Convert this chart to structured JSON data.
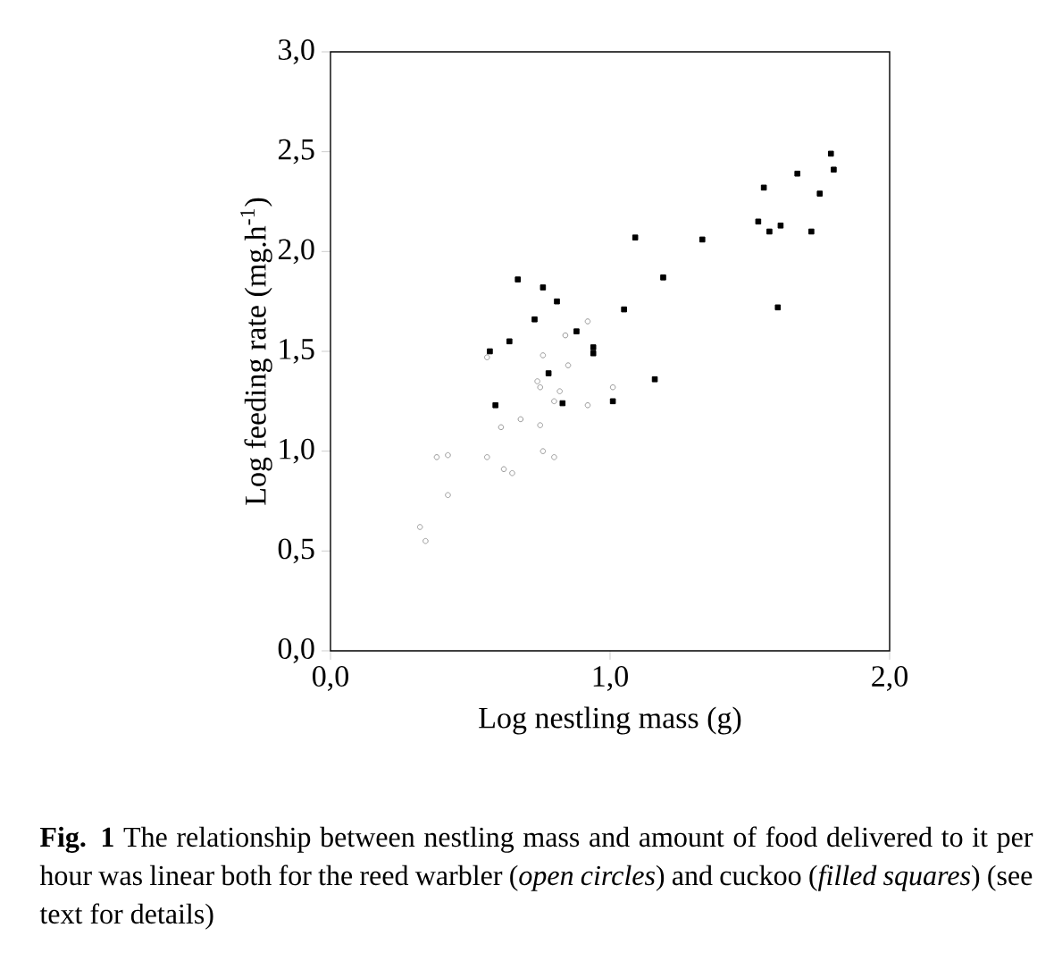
{
  "chart_data": {
    "type": "scatter",
    "xlabel": "Log nestling mass (g)",
    "ylabel": "Log feeding rate (mg.h$^{-1}$)",
    "xlim": [
      0,
      2
    ],
    "ylim": [
      0,
      3
    ],
    "xticks": [
      {
        "value": 0,
        "label": "0,0"
      },
      {
        "value": 1,
        "label": "1,0"
      },
      {
        "value": 2,
        "label": "2,0"
      }
    ],
    "yticks": [
      {
        "value": 0,
        "label": "0,0"
      },
      {
        "value": 0.5,
        "label": "0,5"
      },
      {
        "value": 1,
        "label": "1,0"
      },
      {
        "value": 1.5,
        "label": "1,5"
      },
      {
        "value": 2,
        "label": "2,0"
      },
      {
        "value": 2.5,
        "label": "2,5"
      },
      {
        "value": 3,
        "label": "3,0"
      }
    ],
    "grid": false,
    "series": [
      {
        "color": "#999999",
        "marker": "circle",
        "x": [
          0.92,
          0.84,
          0.56,
          0.76,
          0.85,
          0.74,
          0.75,
          0.82,
          0.8,
          0.92,
          1.01,
          0.68,
          0.61,
          0.75,
          0.38,
          0.42,
          0.56,
          0.76,
          0.8,
          0.62,
          0.65,
          0.42,
          0.32,
          0.34
        ],
        "values": [
          1.65,
          1.58,
          1.47,
          1.48,
          1.43,
          1.35,
          1.32,
          1.3,
          1.25,
          1.23,
          1.32,
          1.16,
          1.12,
          1.13,
          0.97,
          0.98,
          0.97,
          1.0,
          0.97,
          0.91,
          0.89,
          0.78,
          0.62,
          0.55
        ]
      },
      {
        "color": "#000000",
        "marker": "square",
        "x": [
          1.79,
          1.8,
          1.67,
          1.55,
          1.75,
          1.53,
          1.57,
          1.61,
          1.72,
          1.6,
          1.33,
          1.09,
          1.19,
          1.05,
          1.16,
          1.01,
          0.67,
          0.76,
          0.81,
          0.73,
          0.88,
          0.94,
          0.94,
          0.64,
          0.57,
          0.78,
          0.83,
          0.59
        ],
        "values": [
          2.49,
          2.41,
          2.39,
          2.32,
          2.29,
          2.15,
          2.1,
          2.13,
          2.1,
          1.72,
          2.06,
          2.07,
          1.87,
          1.71,
          1.36,
          1.25,
          1.86,
          1.82,
          1.75,
          1.66,
          1.6,
          1.52,
          1.49,
          1.55,
          1.5,
          1.39,
          1.24,
          1.23
        ]
      }
    ],
    "annotations": [
      "**Fig. 1**   The relationship between nestling mass and amount of food delivered to it per hour was linear both for the reed warbler (*open circles*) and cuckoo (*filled squares*) (see text for details)"
    ]
  }
}
